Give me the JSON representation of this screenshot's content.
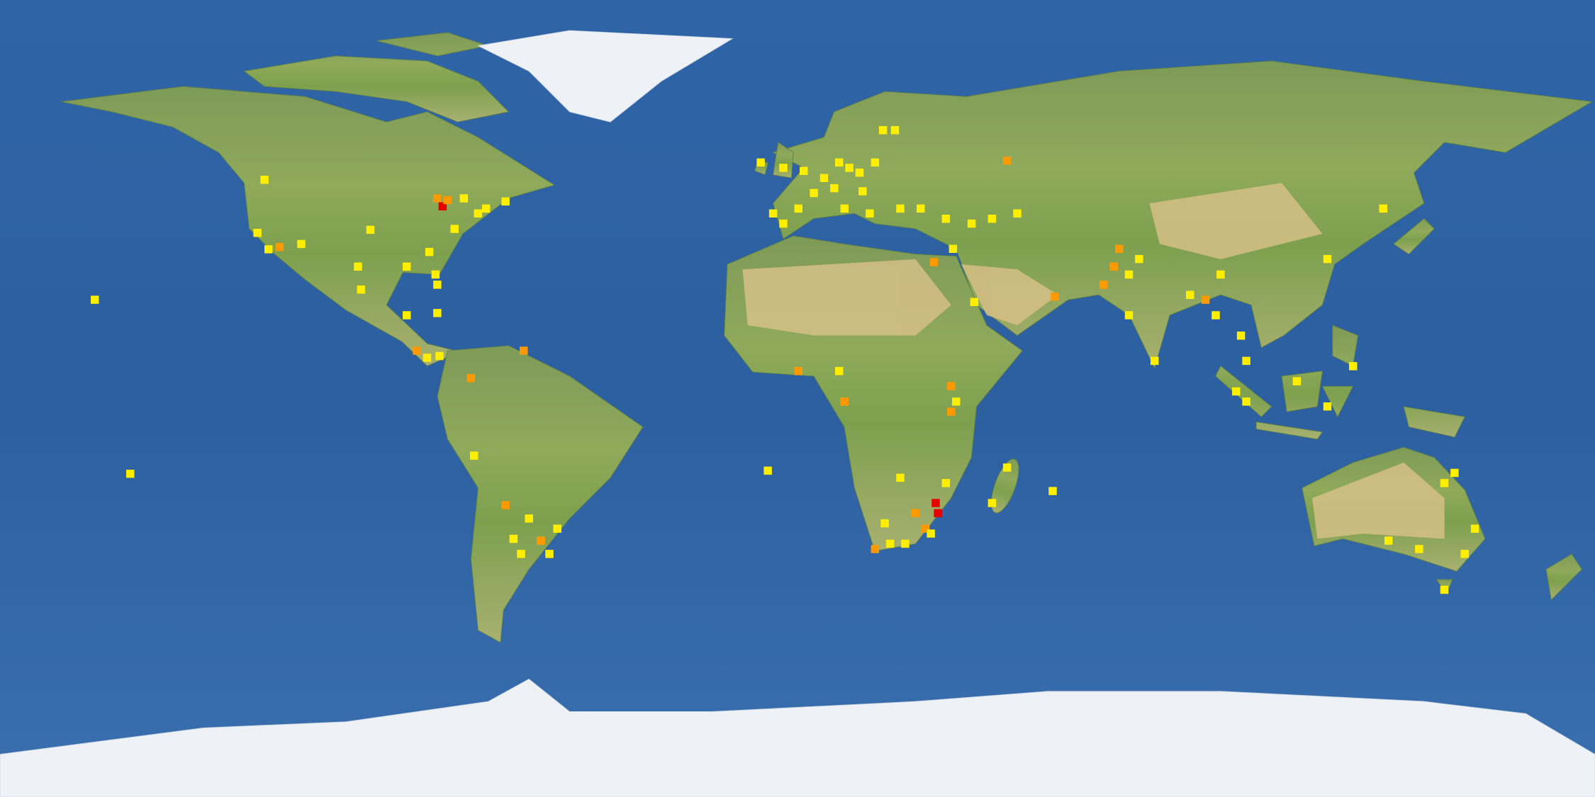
{
  "map": {
    "projection": "equirectangular",
    "lon_range": [
      -180,
      180
    ],
    "lat_range": [
      -90,
      90
    ],
    "occurrences": [
      {
        "lon": -120.3,
        "lat": 49.4,
        "color": "#ffee00"
      },
      {
        "lon": -121.9,
        "lat": 37.4,
        "color": "#ffee00"
      },
      {
        "lon": -119.4,
        "lat": 33.7,
        "color": "#ffee00"
      },
      {
        "lon": -116.9,
        "lat": 34.2,
        "color": "#ff9900"
      },
      {
        "lon": -112.0,
        "lat": 34.9,
        "color": "#ffee00"
      },
      {
        "lon": -99.2,
        "lat": 29.8,
        "color": "#ffee00"
      },
      {
        "lon": -96.4,
        "lat": 38.1,
        "color": "#ffee00"
      },
      {
        "lon": -81.3,
        "lat": 45.2,
        "color": "#ff9900"
      },
      {
        "lon": -80.1,
        "lat": 43.4,
        "color": "#e60000"
      },
      {
        "lon": -79.0,
        "lat": 44.8,
        "color": "#ff9900"
      },
      {
        "lon": -75.3,
        "lat": 45.2,
        "color": "#ffee00"
      },
      {
        "lon": -72.1,
        "lat": 41.8,
        "color": "#ffee00"
      },
      {
        "lon": -70.3,
        "lat": 42.9,
        "color": "#ffee00"
      },
      {
        "lon": -77.4,
        "lat": 38.3,
        "color": "#ffee00"
      },
      {
        "lon": -83.1,
        "lat": 33.1,
        "color": "#ffee00"
      },
      {
        "lon": -88.2,
        "lat": 29.8,
        "color": "#ffee00"
      },
      {
        "lon": -81.7,
        "lat": 28.0,
        "color": "#ffee00"
      },
      {
        "lon": -81.3,
        "lat": 25.7,
        "color": "#ffee00"
      },
      {
        "lon": -65.9,
        "lat": 44.5,
        "color": "#ffee00"
      },
      {
        "lon": -98.5,
        "lat": 24.6,
        "color": "#ffee00"
      },
      {
        "lon": -158.6,
        "lat": 22.3,
        "color": "#ffee00"
      },
      {
        "lon": -88.2,
        "lat": 18.8,
        "color": "#ffee00"
      },
      {
        "lon": -81.3,
        "lat": 19.3,
        "color": "#ffee00"
      },
      {
        "lon": -85.9,
        "lat": 10.8,
        "color": "#ff9900"
      },
      {
        "lon": -83.6,
        "lat": 9.2,
        "color": "#ffee00"
      },
      {
        "lon": -80.8,
        "lat": 9.6,
        "color": "#ffee00"
      },
      {
        "lon": -61.8,
        "lat": 10.8,
        "color": "#ff9900"
      },
      {
        "lon": -73.7,
        "lat": 4.6,
        "color": "#ff9900"
      },
      {
        "lon": -73.0,
        "lat": -12.9,
        "color": "#ffee00"
      },
      {
        "lon": -150.6,
        "lat": -17.0,
        "color": "#ffee00"
      },
      {
        "lon": -65.9,
        "lat": -24.1,
        "color": "#ff9900"
      },
      {
        "lon": -60.6,
        "lat": -27.1,
        "color": "#ffee00"
      },
      {
        "lon": -64.1,
        "lat": -31.7,
        "color": "#ffee00"
      },
      {
        "lon": -57.9,
        "lat": -32.1,
        "color": "#ff9900"
      },
      {
        "lon": -56.0,
        "lat": -35.1,
        "color": "#ffee00"
      },
      {
        "lon": -54.2,
        "lat": -29.4,
        "color": "#ffee00"
      },
      {
        "lon": -62.4,
        "lat": -35.1,
        "color": "#ffee00"
      },
      {
        "lon": -8.3,
        "lat": 53.3,
        "color": "#ffee00"
      },
      {
        "lon": -3.2,
        "lat": 52.1,
        "color": "#ffee00"
      },
      {
        "lon": 1.4,
        "lat": 51.4,
        "color": "#ffee00"
      },
      {
        "lon": 6.0,
        "lat": 49.8,
        "color": "#ffee00"
      },
      {
        "lon": 9.4,
        "lat": 53.3,
        "color": "#ffee00"
      },
      {
        "lon": 11.7,
        "lat": 52.1,
        "color": "#ffee00"
      },
      {
        "lon": 14.0,
        "lat": 51.0,
        "color": "#ffee00"
      },
      {
        "lon": 17.5,
        "lat": 53.3,
        "color": "#ffee00"
      },
      {
        "lon": 14.7,
        "lat": 46.8,
        "color": "#ffee00"
      },
      {
        "lon": 8.3,
        "lat": 47.5,
        "color": "#ffee00"
      },
      {
        "lon": 19.3,
        "lat": 60.6,
        "color": "#ffee00"
      },
      {
        "lon": 22.0,
        "lat": 60.6,
        "color": "#ffee00"
      },
      {
        "lon": 3.7,
        "lat": 46.4,
        "color": "#ffee00"
      },
      {
        "lon": -5.5,
        "lat": 41.8,
        "color": "#ffee00"
      },
      {
        "lon": -3.2,
        "lat": 39.5,
        "color": "#ffee00"
      },
      {
        "lon": 0.2,
        "lat": 42.9,
        "color": "#ffee00"
      },
      {
        "lon": 10.6,
        "lat": 42.9,
        "color": "#ffee00"
      },
      {
        "lon": 16.3,
        "lat": 41.8,
        "color": "#ffee00"
      },
      {
        "lon": 23.2,
        "lat": 42.9,
        "color": "#ffee00"
      },
      {
        "lon": 27.8,
        "lat": 42.9,
        "color": "#ffee00"
      },
      {
        "lon": 47.3,
        "lat": 53.7,
        "color": "#ff9900"
      },
      {
        "lon": 43.9,
        "lat": 40.6,
        "color": "#ffee00"
      },
      {
        "lon": 33.5,
        "lat": 40.6,
        "color": "#ffee00"
      },
      {
        "lon": 39.3,
        "lat": 39.5,
        "color": "#ffee00"
      },
      {
        "lon": 49.6,
        "lat": 41.8,
        "color": "#ffee00"
      },
      {
        "lon": 35.1,
        "lat": 33.8,
        "color": "#ffee00"
      },
      {
        "lon": 30.8,
        "lat": 30.8,
        "color": "#ff9900"
      },
      {
        "lon": 58.1,
        "lat": 23.0,
        "color": "#ff9900"
      },
      {
        "lon": 72.6,
        "lat": 33.8,
        "color": "#ff9900"
      },
      {
        "lon": 71.4,
        "lat": 29.8,
        "color": "#ff9900"
      },
      {
        "lon": 69.1,
        "lat": 25.7,
        "color": "#ff9900"
      },
      {
        "lon": 74.8,
        "lat": 28.0,
        "color": "#ffee00"
      },
      {
        "lon": 77.1,
        "lat": 31.5,
        "color": "#ffee00"
      },
      {
        "lon": 74.8,
        "lat": 18.8,
        "color": "#ffee00"
      },
      {
        "lon": 80.6,
        "lat": 8.5,
        "color": "#ffee00"
      },
      {
        "lon": 88.6,
        "lat": 23.4,
        "color": "#ffee00"
      },
      {
        "lon": 92.1,
        "lat": 22.3,
        "color": "#ff9900"
      },
      {
        "lon": 95.5,
        "lat": 28.0,
        "color": "#ffee00"
      },
      {
        "lon": 94.4,
        "lat": 18.8,
        "color": "#ffee00"
      },
      {
        "lon": 119.6,
        "lat": 31.5,
        "color": "#ffee00"
      },
      {
        "lon": 132.2,
        "lat": 42.9,
        "color": "#ffee00"
      },
      {
        "lon": 100.1,
        "lat": 14.2,
        "color": "#ffee00"
      },
      {
        "lon": 101.3,
        "lat": 8.5,
        "color": "#ffee00"
      },
      {
        "lon": 99.0,
        "lat": 1.6,
        "color": "#ffee00"
      },
      {
        "lon": 101.3,
        "lat": -0.7,
        "color": "#ffee00"
      },
      {
        "lon": 112.7,
        "lat": 3.9,
        "color": "#ffee00"
      },
      {
        "lon": 125.4,
        "lat": 7.3,
        "color": "#ffee00"
      },
      {
        "lon": 119.6,
        "lat": -1.8,
        "color": "#ffee00"
      },
      {
        "lon": 39.9,
        "lat": 21.8,
        "color": "#ffee00"
      },
      {
        "lon": 0.2,
        "lat": 6.2,
        "color": "#ff9900"
      },
      {
        "lon": 9.4,
        "lat": 6.2,
        "color": "#ffee00"
      },
      {
        "lon": 10.6,
        "lat": -0.7,
        "color": "#ff9900"
      },
      {
        "lon": 34.7,
        "lat": 2.8,
        "color": "#ff9900"
      },
      {
        "lon": 35.8,
        "lat": -0.7,
        "color": "#ffee00"
      },
      {
        "lon": 34.7,
        "lat": -3.0,
        "color": "#ff9900"
      },
      {
        "lon": -6.7,
        "lat": -16.3,
        "color": "#ffee00"
      },
      {
        "lon": 47.3,
        "lat": -15.6,
        "color": "#ffee00"
      },
      {
        "lon": 43.9,
        "lat": -23.6,
        "color": "#ffee00"
      },
      {
        "lon": 23.2,
        "lat": -17.9,
        "color": "#ffee00"
      },
      {
        "lon": 31.2,
        "lat": -23.6,
        "color": "#e60000"
      },
      {
        "lon": 31.7,
        "lat": -25.9,
        "color": "#e60000"
      },
      {
        "lon": 28.9,
        "lat": -29.4,
        "color": "#ff9900"
      },
      {
        "lon": 26.6,
        "lat": -25.9,
        "color": "#ff9900"
      },
      {
        "lon": 19.7,
        "lat": -28.2,
        "color": "#ffee00"
      },
      {
        "lon": 17.5,
        "lat": -34.0,
        "color": "#ff9900"
      },
      {
        "lon": 20.9,
        "lat": -32.8,
        "color": "#ffee00"
      },
      {
        "lon": 24.3,
        "lat": -32.8,
        "color": "#ffee00"
      },
      {
        "lon": 30.1,
        "lat": -30.5,
        "color": "#ffee00"
      },
      {
        "lon": 57.6,
        "lat": -20.9,
        "color": "#ffee00"
      },
      {
        "lon": 33.5,
        "lat": -19.1,
        "color": "#ffee00"
      },
      {
        "lon": 146.0,
        "lat": -19.1,
        "color": "#ffee00"
      },
      {
        "lon": 152.9,
        "lat": -29.4,
        "color": "#ffee00"
      },
      {
        "lon": 150.6,
        "lat": -35.1,
        "color": "#ffee00"
      },
      {
        "lon": 140.3,
        "lat": -34.0,
        "color": "#ffee00"
      },
      {
        "lon": 133.4,
        "lat": -32.1,
        "color": "#ffee00"
      },
      {
        "lon": 146.0,
        "lat": -43.2,
        "color": "#ffee00"
      },
      {
        "lon": 148.3,
        "lat": -16.8,
        "color": "#ffee00"
      }
    ]
  }
}
